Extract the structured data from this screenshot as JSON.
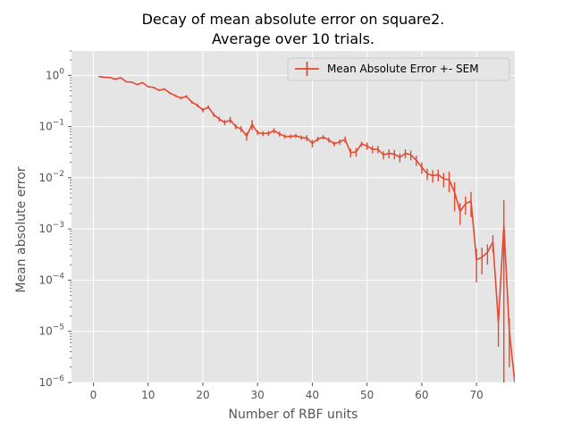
{
  "chart_data": {
    "type": "line",
    "title": "Decay of mean absolute error on square2.",
    "subtitle": "Average over 10 trials.",
    "xlabel": "Number of RBF units",
    "ylabel": "Mean absolute error",
    "xlim": [
      -4,
      77
    ],
    "ylim": [
      1e-06,
      3
    ],
    "yscale": "log",
    "grid": true,
    "legend_position": "top-right",
    "x_ticks": [
      0,
      10,
      20,
      30,
      40,
      50,
      60,
      70
    ],
    "y_ticks": [
      {
        "base": "10",
        "exp": "0",
        "value": 1
      },
      {
        "base": "10",
        "exp": "−1",
        "value": 0.1
      },
      {
        "base": "10",
        "exp": "−2",
        "value": 0.01
      },
      {
        "base": "10",
        "exp": "−3",
        "value": 0.001
      },
      {
        "base": "10",
        "exp": "−4",
        "value": 0.0001
      },
      {
        "base": "10",
        "exp": "−5",
        "value": 1e-05
      },
      {
        "base": "10",
        "exp": "−6",
        "value": 1e-06
      }
    ],
    "colors": {
      "series": "#E24A33",
      "background": "#E5E5E5",
      "grid": "#FFFFFF",
      "tick": "#555555"
    },
    "series": [
      {
        "name": "Mean Absolute Error +- SEM",
        "x": [
          1,
          2,
          3,
          4,
          5,
          6,
          7,
          8,
          9,
          10,
          11,
          12,
          13,
          14,
          15,
          16,
          17,
          18,
          19,
          20,
          21,
          22,
          23,
          24,
          25,
          26,
          27,
          28,
          29,
          30,
          31,
          32,
          33,
          34,
          35,
          36,
          37,
          38,
          39,
          40,
          41,
          42,
          43,
          44,
          45,
          46,
          47,
          48,
          49,
          50,
          51,
          52,
          53,
          54,
          55,
          56,
          57,
          58,
          59,
          60,
          61,
          62,
          63,
          64,
          65,
          66,
          67,
          68,
          69,
          70,
          71,
          72,
          73,
          74,
          75,
          76,
          77
        ],
        "y": [
          0.95,
          0.92,
          0.91,
          0.84,
          0.9,
          0.75,
          0.74,
          0.66,
          0.72,
          0.6,
          0.58,
          0.51,
          0.54,
          0.45,
          0.4,
          0.36,
          0.39,
          0.3,
          0.26,
          0.21,
          0.24,
          0.17,
          0.14,
          0.12,
          0.135,
          0.1,
          0.09,
          0.065,
          0.11,
          0.076,
          0.073,
          0.074,
          0.083,
          0.072,
          0.064,
          0.064,
          0.066,
          0.061,
          0.06,
          0.047,
          0.057,
          0.062,
          0.055,
          0.046,
          0.05,
          0.056,
          0.031,
          0.032,
          0.046,
          0.042,
          0.036,
          0.036,
          0.028,
          0.03,
          0.029,
          0.025,
          0.03,
          0.028,
          0.022,
          0.016,
          0.012,
          0.011,
          0.0115,
          0.0095,
          0.0092,
          0.0052,
          0.0022,
          0.0031,
          0.0035,
          0.00025,
          0.00028,
          0.00035,
          0.00055,
          1.5e-05,
          0.0012,
          1e-05,
          1e-06
        ],
        "err": [
          0.02,
          0.02,
          0.02,
          0.02,
          0.02,
          0.02,
          0.02,
          0.02,
          0.02,
          0.02,
          0.02,
          0.02,
          0.02,
          0.02,
          0.02,
          0.02,
          0.02,
          0.02,
          0.02,
          0.02,
          0.02,
          0.015,
          0.015,
          0.015,
          0.02,
          0.012,
          0.012,
          0.012,
          0.025,
          0.008,
          0.008,
          0.008,
          0.01,
          0.008,
          0.006,
          0.006,
          0.006,
          0.006,
          0.008,
          0.008,
          0.006,
          0.006,
          0.006,
          0.005,
          0.006,
          0.008,
          0.006,
          0.006,
          0.005,
          0.007,
          0.006,
          0.006,
          0.005,
          0.006,
          0.006,
          0.005,
          0.006,
          0.006,
          0.005,
          0.004,
          0.003,
          0.003,
          0.003,
          0.003,
          0.004,
          0.003,
          0.001,
          0.0012,
          0.0018,
          0.00016,
          0.00015,
          0.00015,
          0.0002,
          1e-05,
          0.0024,
          8e-06,
          5e-07
        ]
      }
    ]
  }
}
